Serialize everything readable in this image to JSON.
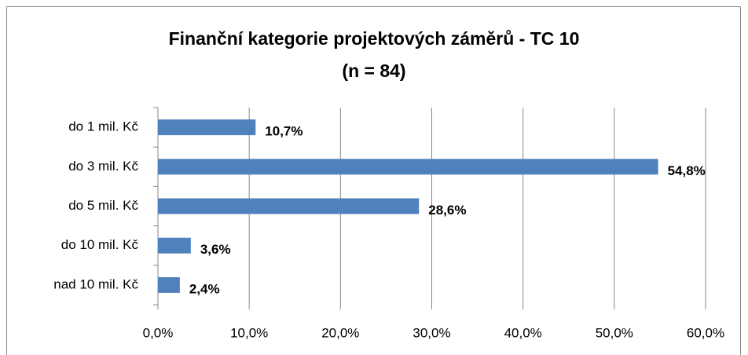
{
  "chart_data": {
    "type": "barh",
    "title": "Finanční kategorie projektových záměrů - TC 10",
    "subtitle": "(n = 84)",
    "categories": [
      "do 1 mil. Kč",
      "do 3 mil. Kč",
      "do 5 mil. Kč",
      "do 10 mil. Kč",
      "nad 10 mil. Kč"
    ],
    "values": [
      10.7,
      54.8,
      28.6,
      3.6,
      2.4
    ],
    "value_labels": [
      "10,7%",
      "54,8%",
      "28,6%",
      "3,6%",
      "2,4%"
    ],
    "color": "#4f81bd",
    "xlim": [
      0,
      60
    ],
    "xticks": [
      {
        "value": 0,
        "label": "0,0%"
      },
      {
        "value": 10,
        "label": "10,0%"
      },
      {
        "value": 20,
        "label": "20,0%"
      },
      {
        "value": 30,
        "label": "30,0%"
      },
      {
        "value": 40,
        "label": "40,0%"
      },
      {
        "value": 50,
        "label": "50,0%"
      },
      {
        "value": 60,
        "label": "60,0%"
      }
    ],
    "grid": true
  }
}
